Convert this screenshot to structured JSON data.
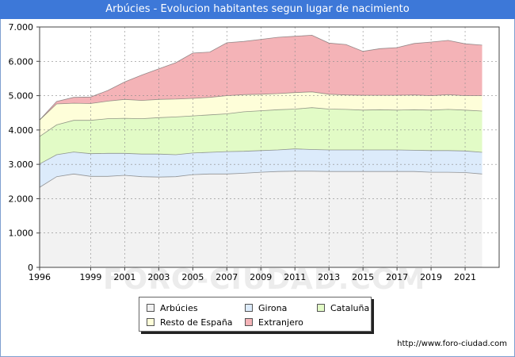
{
  "header": {
    "title": "Arbúcies - Evolucion habitantes segun lugar de nacimiento"
  },
  "footer": {
    "source": "http://www.foro-ciudad.com"
  },
  "watermark": "FORO-CIUDAD.COM",
  "chart_data": {
    "type": "area",
    "stacked": true,
    "title": "Arbúcies - Evolucion habitantes segun lugar de nacimiento",
    "xlabel": "",
    "ylabel": "",
    "x": [
      1996,
      1997,
      1998,
      1999,
      2000,
      2001,
      2002,
      2003,
      2004,
      2005,
      2006,
      2007,
      2008,
      2009,
      2010,
      2011,
      2012,
      2013,
      2014,
      2015,
      2016,
      2017,
      2018,
      2019,
      2020,
      2021,
      2022
    ],
    "xticks": [
      1996,
      1999,
      2001,
      2003,
      2005,
      2007,
      2009,
      2011,
      2013,
      2015,
      2017,
      2019,
      2021
    ],
    "yticks": [
      "0",
      "1.000",
      "2.000",
      "3.000",
      "4.000",
      "5.000",
      "6.000",
      "7.000"
    ],
    "ylim": [
      0,
      7000
    ],
    "xlim": [
      1996,
      2023
    ],
    "grid": true,
    "legend_position": "bottom",
    "series": [
      {
        "name": "Arbúcies",
        "color": "#f2f2f2",
        "line": "#555555",
        "cumulative": [
          2330,
          2640,
          2720,
          2650,
          2650,
          2680,
          2640,
          2630,
          2640,
          2700,
          2720,
          2720,
          2740,
          2770,
          2790,
          2800,
          2800,
          2790,
          2790,
          2790,
          2790,
          2790,
          2790,
          2770,
          2770,
          2760,
          2720
        ]
      },
      {
        "name": "Girona",
        "color": "#dcebfb",
        "line": "#555555",
        "cumulative": [
          3010,
          3280,
          3360,
          3310,
          3320,
          3320,
          3300,
          3300,
          3280,
          3330,
          3350,
          3370,
          3380,
          3400,
          3420,
          3450,
          3430,
          3420,
          3420,
          3420,
          3420,
          3420,
          3410,
          3400,
          3400,
          3390,
          3350
        ]
      },
      {
        "name": "Cataluña",
        "color": "#e2fbc6",
        "line": "#555555",
        "cumulative": [
          3810,
          4150,
          4280,
          4280,
          4330,
          4340,
          4330,
          4360,
          4380,
          4410,
          4440,
          4470,
          4530,
          4560,
          4590,
          4610,
          4650,
          4610,
          4600,
          4580,
          4590,
          4580,
          4590,
          4580,
          4600,
          4580,
          4550
        ]
      },
      {
        "name": "Resto de España",
        "color": "#fefed9",
        "line": "#555555",
        "cumulative": [
          4290,
          4760,
          4780,
          4770,
          4840,
          4890,
          4860,
          4890,
          4900,
          4920,
          4950,
          5000,
          5030,
          5040,
          5060,
          5090,
          5110,
          5040,
          5020,
          5010,
          5010,
          5010,
          5020,
          5000,
          5030,
          5000,
          5000
        ]
      },
      {
        "name": "Extranjero",
        "color": "#f4b3b7",
        "line": "#555555",
        "cumulative": [
          4290,
          4830,
          4950,
          4960,
          5150,
          5400,
          5600,
          5780,
          5960,
          6240,
          6270,
          6540,
          6580,
          6640,
          6700,
          6730,
          6760,
          6530,
          6490,
          6290,
          6370,
          6400,
          6520,
          6560,
          6610,
          6510,
          6470
        ]
      }
    ]
  }
}
